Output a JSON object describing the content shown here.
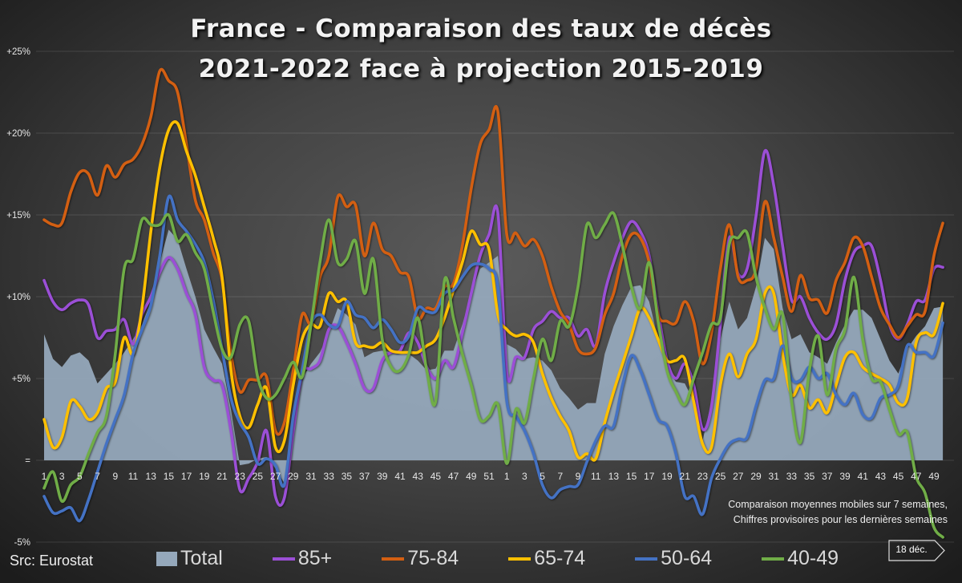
{
  "title": {
    "line1": "France - Comparaison des taux de décès",
    "line2": "2021-2022 face à projection 2015-2019"
  },
  "source": "Src: Eurostat",
  "note": {
    "line1": "Comparaison moyennes mobiles sur 7 semaines,",
    "line2": "Chiffres provisoires pour les dernières semaines"
  },
  "date_badge": "18 déc.",
  "chart_data": {
    "type": "line",
    "title": "France - Comparaison des taux de décès 2021-2022 face à projection 2015-2019",
    "xlabel": "",
    "ylabel": "",
    "ylim": [
      -5,
      25
    ],
    "y_ticks": [
      -5,
      0,
      5,
      10,
      15,
      20,
      25
    ],
    "y_tick_labels": [
      "-5%",
      "=",
      "+5%",
      "+10%",
      "+15%",
      "+20%",
      "+25%"
    ],
    "grid": true,
    "legend": "bottom",
    "categories": [
      "1",
      "2",
      "3",
      "4",
      "5",
      "6",
      "7",
      "8",
      "9",
      "10",
      "11",
      "12",
      "13",
      "14",
      "15",
      "16",
      "17",
      "18",
      "19",
      "20",
      "21",
      "22",
      "23",
      "24",
      "25",
      "26",
      "27",
      "28",
      "29",
      "30",
      "31",
      "32",
      "33",
      "34",
      "35",
      "36",
      "37",
      "38",
      "39",
      "40",
      "41",
      "42",
      "43",
      "44",
      "45",
      "46",
      "47",
      "48",
      "49",
      "50",
      "51",
      "52",
      "1",
      "2",
      "3",
      "4",
      "5",
      "6",
      "7",
      "8",
      "9",
      "10",
      "11",
      "12",
      "13",
      "14",
      "15",
      "16",
      "17",
      "18",
      "19",
      "20",
      "21",
      "22",
      "23",
      "24",
      "25",
      "26",
      "27",
      "28",
      "29",
      "30",
      "31",
      "32",
      "33",
      "34",
      "35",
      "36",
      "37",
      "38",
      "39",
      "40",
      "41",
      "42",
      "43",
      "44",
      "45",
      "46",
      "47",
      "48",
      "49",
      "50"
    ],
    "series": [
      {
        "name": "Total",
        "kind": "area",
        "color": "#95a8bb",
        "values": [
          7.7,
          6.2,
          5.7,
          6.4,
          6.6,
          6.1,
          4.7,
          5.3,
          5.9,
          6.6,
          7.4,
          8.3,
          9.7,
          12.1,
          14.1,
          13.5,
          11.7,
          10.0,
          8.0,
          6.9,
          5.9,
          3.1,
          -0.3,
          -0.2,
          0.1,
          0.2,
          -0.5,
          -1.4,
          2.7,
          5.0,
          5.9,
          6.6,
          7.8,
          9.3,
          8.9,
          8.3,
          6.3,
          6.6,
          6.7,
          6.6,
          6.6,
          6.5,
          6.1,
          5.5,
          5.6,
          6.7,
          6.7,
          8.3,
          10.2,
          11.7,
          12.1,
          12.5,
          7.1,
          6.8,
          6.2,
          6.3,
          6.1,
          5.5,
          4.4,
          3.8,
          3.1,
          3.5,
          3.5,
          6.5,
          8.2,
          9.5,
          10.6,
          10.7,
          9.7,
          7.4,
          5.7,
          4.8,
          4.7,
          3.6,
          1.2,
          3.6,
          7.4,
          9.7,
          8.0,
          8.7,
          10.6,
          13.6,
          12.9,
          9.3,
          7.4,
          7.7,
          6.6,
          6.3,
          5.9,
          7.2,
          8.3,
          9.2,
          9.2,
          8.7,
          7.4,
          6.1,
          5.3,
          6.8,
          7.6,
          8.2,
          9.3,
          9.4
        ]
      },
      {
        "name": "85+",
        "kind": "line",
        "color": "#9b4fd6",
        "values": [
          11.0,
          9.7,
          9.2,
          9.6,
          9.8,
          9.5,
          7.5,
          7.9,
          8.0,
          8.6,
          7.1,
          8.9,
          10.0,
          11.5,
          12.4,
          11.7,
          10.2,
          8.9,
          5.7,
          4.9,
          4.6,
          1.8,
          -1.8,
          -1.1,
          -0.1,
          1.8,
          -2.2,
          -2.3,
          1.8,
          5.3,
          5.6,
          6.1,
          8.0,
          8.2,
          7.2,
          5.9,
          4.4,
          4.4,
          6.1,
          6.6,
          6.7,
          7.8,
          7.2,
          5.7,
          5.0,
          6.1,
          5.7,
          7.8,
          10.2,
          12.5,
          13.8,
          15.1,
          5.3,
          6.3,
          6.3,
          8.0,
          8.5,
          9.1,
          8.7,
          8.7,
          7.6,
          8.0,
          7.0,
          10.2,
          12.1,
          13.6,
          14.6,
          14.0,
          12.5,
          9.1,
          6.1,
          5.0,
          5.9,
          4.6,
          1.9,
          3.3,
          8.3,
          13.6,
          11.4,
          11.7,
          14.9,
          18.9,
          16.8,
          13.1,
          9.8,
          10.0,
          8.7,
          7.8,
          7.4,
          8.3,
          11.0,
          12.7,
          13.1,
          13.1,
          11.0,
          8.3,
          7.4,
          8.3,
          9.7,
          9.8,
          11.7,
          11.8
        ]
      },
      {
        "name": "75-84",
        "kind": "line",
        "color": "#d35f12",
        "values": [
          14.7,
          14.4,
          14.5,
          16.4,
          17.6,
          17.5,
          16.2,
          18.0,
          17.3,
          18.1,
          18.4,
          19.3,
          21.0,
          23.8,
          23.2,
          22.5,
          19.3,
          15.9,
          14.7,
          12.7,
          11.0,
          6.5,
          4.2,
          4.9,
          4.9,
          5.1,
          1.8,
          2.3,
          5.5,
          8.9,
          8.4,
          11.2,
          12.5,
          16.1,
          15.5,
          15.6,
          12.5,
          14.5,
          12.9,
          12.5,
          11.5,
          11.2,
          8.7,
          9.3,
          9.3,
          10.6,
          10.8,
          13.1,
          16.6,
          19.3,
          20.2,
          21.3,
          13.8,
          13.9,
          13.1,
          13.5,
          12.5,
          10.6,
          9.1,
          8.3,
          6.8,
          6.5,
          6.9,
          8.9,
          10.2,
          12.5,
          13.8,
          13.6,
          12.1,
          8.9,
          8.5,
          8.4,
          9.7,
          8.5,
          5.9,
          7.8,
          11.7,
          14.4,
          11.2,
          11.0,
          11.7,
          15.8,
          13.6,
          11.2,
          9.1,
          11.3,
          9.9,
          9.8,
          9.0,
          11.0,
          12.1,
          13.6,
          13.1,
          11.2,
          9.3,
          8.3,
          7.5,
          8.2,
          8.9,
          9.1,
          12.5,
          14.5
        ]
      },
      {
        "name": "65-74",
        "kind": "line",
        "color": "#ffc000",
        "values": [
          2.5,
          0.8,
          1.4,
          3.6,
          3.3,
          2.5,
          2.9,
          4.4,
          4.8,
          7.5,
          6.5,
          9.3,
          14.0,
          17.9,
          20.2,
          20.6,
          18.9,
          17.4,
          15.5,
          13.6,
          11.2,
          5.5,
          2.7,
          2.0,
          3.4,
          4.4,
          0.8,
          1.2,
          4.6,
          7.4,
          8.3,
          8.2,
          10.2,
          9.7,
          9.7,
          7.2,
          7.0,
          6.9,
          7.2,
          6.7,
          6.6,
          6.6,
          6.6,
          7.0,
          7.4,
          8.7,
          10.4,
          12.1,
          14.0,
          13.2,
          12.9,
          8.9,
          8.0,
          7.6,
          7.7,
          7.2,
          5.3,
          3.8,
          2.7,
          1.8,
          0.2,
          0.4,
          0.1,
          2.3,
          4.2,
          5.9,
          7.6,
          9.3,
          8.7,
          7.4,
          6.1,
          6.1,
          6.2,
          3.6,
          1.0,
          0.8,
          4.6,
          6.5,
          5.1,
          6.5,
          7.4,
          10.2,
          10.2,
          6.5,
          4.0,
          4.6,
          3.2,
          3.7,
          2.9,
          4.6,
          6.3,
          6.6,
          5.7,
          5.3,
          5.0,
          4.6,
          3.5,
          3.8,
          7.2,
          7.8,
          7.7,
          9.6
        ]
      },
      {
        "name": "50-64",
        "kind": "line",
        "color": "#4472c4",
        "values": [
          -2.2,
          -3.2,
          -3.1,
          -2.9,
          -3.7,
          -2.4,
          -0.7,
          1.0,
          2.5,
          4.0,
          6.5,
          8.0,
          9.5,
          12.5,
          16.1,
          14.7,
          14.0,
          13.2,
          12.1,
          9.8,
          6.8,
          3.8,
          2.3,
          1.4,
          -0.2,
          0.1,
          -0.3,
          -1.5,
          2.7,
          5.5,
          8.3,
          8.9,
          8.3,
          8.2,
          9.7,
          8.9,
          8.7,
          8.1,
          8.6,
          8.0,
          7.2,
          7.6,
          9.3,
          9.1,
          9.1,
          10.2,
          10.4,
          11.2,
          11.9,
          12.0,
          11.7,
          10.6,
          3.6,
          2.7,
          1.8,
          0.4,
          -1.5,
          -2.3,
          -1.8,
          -1.6,
          -1.5,
          -0.1,
          1.2,
          2.1,
          2.1,
          4.6,
          6.4,
          5.5,
          4.0,
          2.5,
          2.1,
          0.4,
          -2.2,
          -2.2,
          -3.3,
          -1.1,
          0.1,
          1.0,
          1.3,
          1.4,
          3.3,
          4.9,
          5.0,
          7.0,
          5.0,
          4.9,
          5.7,
          5.0,
          5.3,
          4.0,
          3.4,
          4.1,
          2.8,
          2.6,
          3.8,
          4.0,
          4.6,
          7.0,
          6.6,
          6.6,
          6.4,
          8.4
        ]
      },
      {
        "name": "40-49",
        "kind": "line",
        "color": "#70ad47",
        "values": [
          -1.7,
          -0.7,
          -2.5,
          -1.5,
          -1.0,
          0.4,
          1.7,
          2.7,
          6.5,
          11.7,
          12.3,
          14.7,
          14.4,
          14.4,
          15.0,
          13.4,
          13.8,
          12.7,
          11.7,
          9.1,
          6.8,
          6.3,
          8.3,
          8.5,
          5.1,
          3.8,
          4.0,
          5.0,
          6.0,
          5.1,
          8.3,
          12.1,
          14.7,
          12.1,
          12.3,
          13.4,
          10.2,
          12.3,
          7.4,
          5.7,
          5.5,
          6.5,
          8.7,
          5.5,
          3.6,
          11.0,
          8.7,
          6.5,
          4.6,
          2.5,
          2.7,
          3.4,
          -0.2,
          3.1,
          2.3,
          5.0,
          7.4,
          6.1,
          8.5,
          8.2,
          10.6,
          14.4,
          13.6,
          14.4,
          15.1,
          13.1,
          10.6,
          9.3,
          12.1,
          8.5,
          5.5,
          4.2,
          3.4,
          5.0,
          6.6,
          8.3,
          8.7,
          13.2,
          13.6,
          13.9,
          11.2,
          9.3,
          8.0,
          8.9,
          3.6,
          1.1,
          5.5,
          7.6,
          4.0,
          6.8,
          8.0,
          11.2,
          7.4,
          5.0,
          4.8,
          3.1,
          1.6,
          1.7,
          -1.0,
          -2.0,
          -4.1,
          -4.7
        ]
      }
    ]
  }
}
